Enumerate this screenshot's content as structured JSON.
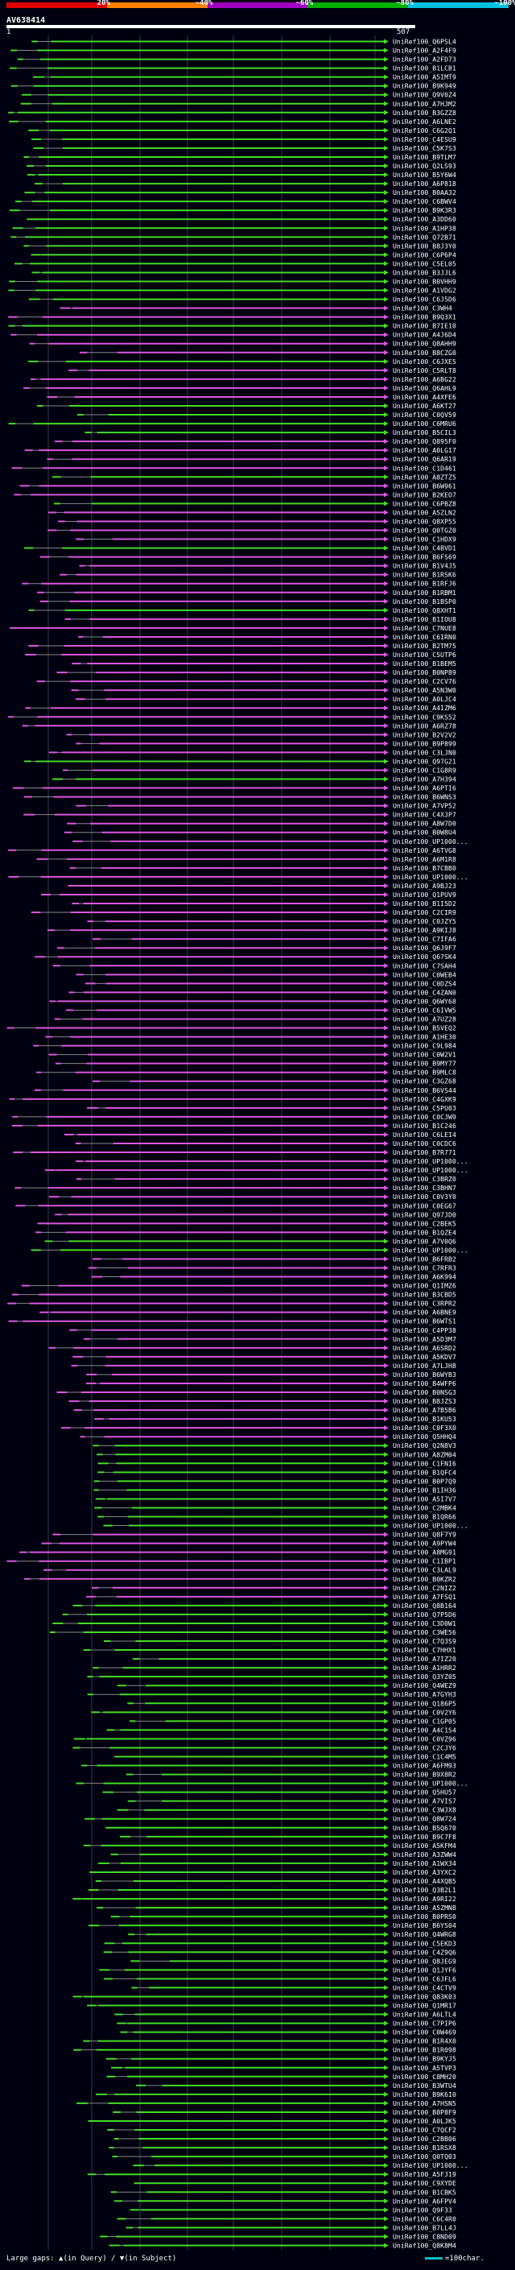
{
  "scale": {
    "labels": [
      "20%",
      "~40%",
      "~60%",
      "~80%",
      "~100%"
    ],
    "colors": [
      "#e00000",
      "#ff8000",
      "#a000c0",
      "#00b000",
      "#00c0e0"
    ]
  },
  "query": {
    "name": "AV638414",
    "start": "1",
    "end": "507"
  },
  "colors": {
    "high_identity": "#44dd22",
    "low_identity": "#dd55dd",
    "gap": "#888888",
    "grid": "#3a3a4a"
  },
  "hits": [
    {
      "label": "UniRef100_Q6PSL4",
      "c": "g"
    },
    {
      "label": "UniRef100_A2F4F9",
      "c": "g"
    },
    {
      "label": "UniRef100_A2FD73",
      "c": "g"
    },
    {
      "label": "UniRef100_B1LCB1",
      "c": "g"
    },
    {
      "label": "UniRef100_A5IMT9",
      "c": "g"
    },
    {
      "label": "UniRef100_B9K949",
      "c": "g"
    },
    {
      "label": "UniRef100_Q9V0Z4",
      "c": "g"
    },
    {
      "label": "UniRef100_A7HJM2",
      "c": "g"
    },
    {
      "label": "UniRef100_B3GZZ8",
      "c": "g"
    },
    {
      "label": "UniRef100_A6LNE2",
      "c": "g"
    },
    {
      "label": "UniRef100_C6G2Q1",
      "c": "g"
    },
    {
      "label": "UniRef100_C4ESU9",
      "c": "g"
    },
    {
      "label": "UniRef100_C5K7S3",
      "c": "g"
    },
    {
      "label": "UniRef100_B9TLM7",
      "c": "g"
    },
    {
      "label": "UniRef100_Q2LS93",
      "c": "g"
    },
    {
      "label": "UniRef100_B5Y6W4",
      "c": "g"
    },
    {
      "label": "UniRef100_A6P818",
      "c": "g"
    },
    {
      "label": "UniRef100_B0AA32",
      "c": "g"
    },
    {
      "label": "UniRef100_C6BWV4",
      "c": "g"
    },
    {
      "label": "UniRef100_B9K3R3",
      "c": "g"
    },
    {
      "label": "UniRef100_A3DD60",
      "c": "g"
    },
    {
      "label": "UniRef100_A1HP38",
      "c": "g"
    },
    {
      "label": "UniRef100_Q72B71",
      "c": "g"
    },
    {
      "label": "UniRef100_B8J3Y0",
      "c": "g"
    },
    {
      "label": "UniRef100_C6P6P4",
      "c": "g"
    },
    {
      "label": "UniRef100_C5EL05",
      "c": "g"
    },
    {
      "label": "UniRef100_B3JJL6",
      "c": "g"
    },
    {
      "label": "UniRef100_B0VHH9",
      "c": "g"
    },
    {
      "label": "UniRef100_A1VDG2",
      "c": "g"
    },
    {
      "label": "UniRef100_C6J5D6",
      "c": "g"
    },
    {
      "label": "UniRef100_C3WH4",
      "c": "p"
    },
    {
      "label": "UniRef100_B9Q3X1",
      "c": "p"
    },
    {
      "label": "UniRef100_B7IE10",
      "c": "g"
    },
    {
      "label": "UniRef100_A4J6D4",
      "c": "p"
    },
    {
      "label": "UniRef100_Q8AHH9",
      "c": "p"
    },
    {
      "label": "UniRef100_B8CZG0",
      "c": "p"
    },
    {
      "label": "UniRef100_C6JXE5",
      "c": "g"
    },
    {
      "label": "UniRef100_C5RLT8",
      "c": "p"
    },
    {
      "label": "UniRef100_A6BG22",
      "c": "p"
    },
    {
      "label": "UniRef100_Q6AHL9",
      "c": "p"
    },
    {
      "label": "UniRef100_A4XFE6",
      "c": "p"
    },
    {
      "label": "UniRef100_A6KT27",
      "c": "g"
    },
    {
      "label": "UniRef100_C0QV59",
      "c": "g"
    },
    {
      "label": "UniRef100_C6MRU6",
      "c": "g"
    },
    {
      "label": "UniRef100_B5CIL3",
      "c": "g"
    },
    {
      "label": "UniRef100_Q895F0",
      "c": "p"
    },
    {
      "label": "UniRef100_A0LG17",
      "c": "p"
    },
    {
      "label": "UniRef100_Q6AR19",
      "c": "p"
    },
    {
      "label": "UniRef100_C1D461",
      "c": "p"
    },
    {
      "label": "UniRef100_A8ZTZ5",
      "c": "g"
    },
    {
      "label": "UniRef100_B6W961",
      "c": "p"
    },
    {
      "label": "UniRef100_B2KEO7",
      "c": "p"
    },
    {
      "label": "UniRef100_C6PBZ8",
      "c": "g"
    },
    {
      "label": "UniRef100_A5ZLN2",
      "c": "p"
    },
    {
      "label": "UniRef100_Q8XP55",
      "c": "p"
    },
    {
      "label": "UniRef100_Q0TGZ0",
      "c": "p"
    },
    {
      "label": "UniRef100_C1HDX9",
      "c": "p"
    },
    {
      "label": "UniRef100_C4BVD1",
      "c": "g"
    },
    {
      "label": "UniRef100_B6FS69",
      "c": "p"
    },
    {
      "label": "UniRef100_B1V4J5",
      "c": "p"
    },
    {
      "label": "UniRef100_B1RSK6",
      "c": "p"
    },
    {
      "label": "UniRef100_B1RFJ6",
      "c": "p"
    },
    {
      "label": "UniRef100_B1RBM1",
      "c": "p"
    },
    {
      "label": "UniRef100_B1BSP0",
      "c": "p"
    },
    {
      "label": "UniRef100_Q8XHT1",
      "c": "g"
    },
    {
      "label": "UniRef100_B1IOU8",
      "c": "p"
    },
    {
      "label": "UniRef100_C7NUE8",
      "c": "p"
    },
    {
      "label": "UniRef100_C6IRN0",
      "c": "p"
    },
    {
      "label": "UniRef100_B2TM75",
      "c": "p"
    },
    {
      "label": "UniRef100_C5UTP6",
      "c": "p"
    },
    {
      "label": "UniRef100_B1BEM5",
      "c": "p"
    },
    {
      "label": "UniRef100_B0NP89",
      "c": "p"
    },
    {
      "label": "UniRef100_C2CV76",
      "c": "p"
    },
    {
      "label": "UniRef100_A5N3W0",
      "c": "p"
    },
    {
      "label": "UniRef100_A0LJC4",
      "c": "p"
    },
    {
      "label": "UniRef100_A4IZM6",
      "c": "p"
    },
    {
      "label": "UniRef100_C9KS52",
      "c": "p"
    },
    {
      "label": "UniRef100_A6RZ78",
      "c": "p"
    },
    {
      "label": "UniRef100_B2V2V2",
      "c": "p"
    },
    {
      "label": "UniRef100_B9P899",
      "c": "p"
    },
    {
      "label": "UniRef100_C3LJN0",
      "c": "p"
    },
    {
      "label": "UniRef100_Q97G21",
      "c": "g"
    },
    {
      "label": "UniRef100_C1G8R9",
      "c": "p"
    },
    {
      "label": "UniRef100_A7H394",
      "c": "g"
    },
    {
      "label": "UniRef100_A6PTI6",
      "c": "p"
    },
    {
      "label": "UniRef100_B6WNS3",
      "c": "p"
    },
    {
      "label": "UniRef100_A7VP52",
      "c": "p"
    },
    {
      "label": "UniRef100_C4XJP7",
      "c": "p"
    },
    {
      "label": "UniRef100_A8W7D0",
      "c": "p"
    },
    {
      "label": "UniRef100_B0W8U4",
      "c": "p"
    },
    {
      "label": "UniRef100_UP1000...",
      "c": "p"
    },
    {
      "label": "UniRef100_A6TVG8",
      "c": "p"
    },
    {
      "label": "UniRef100_A6M1R8",
      "c": "p"
    },
    {
      "label": "UniRef100_B7CBB0",
      "c": "p"
    },
    {
      "label": "UniRef100_UP1000...",
      "c": "p"
    },
    {
      "label": "UniRef100_A9BJ23",
      "c": "p"
    },
    {
      "label": "UniRef100_Q1PUV9",
      "c": "p"
    },
    {
      "label": "UniRef100_B1I5D2",
      "c": "p"
    },
    {
      "label": "UniRef100_C2CIR9",
      "c": "p"
    },
    {
      "label": "UniRef100_C0JZY5",
      "c": "p"
    },
    {
      "label": "UniRef100_A9KIJ8",
      "c": "p"
    },
    {
      "label": "UniRef100_C7IFA6",
      "c": "p"
    },
    {
      "label": "UniRef100_Q6J9F7",
      "c": "p"
    },
    {
      "label": "UniRef100_Q67SK4",
      "c": "p"
    },
    {
      "label": "UniRef100_C7SAH4",
      "c": "p"
    },
    {
      "label": "UniRef100_C0WEB4",
      "c": "p"
    },
    {
      "label": "UniRef100_C0DZS4",
      "c": "p"
    },
    {
      "label": "UniRef100_C4ZAN0",
      "c": "p"
    },
    {
      "label": "UniRef100_Q6WY68",
      "c": "p"
    },
    {
      "label": "UniRef100_C6IVW5",
      "c": "p"
    },
    {
      "label": "UniRef100_A7UZ28",
      "c": "p"
    },
    {
      "label": "UniRef100_B5VEQ2",
      "c": "p"
    },
    {
      "label": "UniRef100_A1HE30",
      "c": "p"
    },
    {
      "label": "UniRef100_C9L984",
      "c": "p"
    },
    {
      "label": "UniRef100_C0W2V1",
      "c": "p"
    },
    {
      "label": "UniRef100_B9MY77",
      "c": "p"
    },
    {
      "label": "UniRef100_B9MLC8",
      "c": "p"
    },
    {
      "label": "UniRef100_C3GZ68",
      "c": "p"
    },
    {
      "label": "UniRef100_B6VS44",
      "c": "p"
    },
    {
      "label": "UniRef100_C4GXK9",
      "c": "p"
    },
    {
      "label": "UniRef100_C5PU03",
      "c": "p"
    },
    {
      "label": "UniRef100_C0CJW9",
      "c": "p"
    },
    {
      "label": "UniRef100_B1C246",
      "c": "p"
    },
    {
      "label": "UniRef100_C6LEI4",
      "c": "p"
    },
    {
      "label": "UniRef100_C0CDC6",
      "c": "p"
    },
    {
      "label": "UniRef100_B7R771",
      "c": "p"
    },
    {
      "label": "UniRef100_UP1000...",
      "c": "p"
    },
    {
      "label": "UniRef100_UP1000...",
      "c": "p"
    },
    {
      "label": "UniRef100_C3BRZ0",
      "c": "p"
    },
    {
      "label": "UniRef100_C3BHN7",
      "c": "p"
    },
    {
      "label": "UniRef100_C0V3Y0",
      "c": "p"
    },
    {
      "label": "UniRef100_C0EG67",
      "c": "p"
    },
    {
      "label": "UniRef100_Q97JD0",
      "c": "p"
    },
    {
      "label": "UniRef100_C2BEK5",
      "c": "p"
    },
    {
      "label": "UniRef100_B1QZE4",
      "c": "p"
    },
    {
      "label": "UniRef100_A7V0Q6",
      "c": "g"
    },
    {
      "label": "UniRef100_UP1000...",
      "c": "g"
    },
    {
      "label": "UniRef100_B6FRB2",
      "c": "p"
    },
    {
      "label": "UniRef100_C7RFR3",
      "c": "p"
    },
    {
      "label": "UniRef100_A6K994",
      "c": "p"
    },
    {
      "label": "UniRef100_Q1IMZ6",
      "c": "p"
    },
    {
      "label": "UniRef100_B3CBD5",
      "c": "p"
    },
    {
      "label": "UniRef100_C3RPR2",
      "c": "p"
    },
    {
      "label": "UniRef100_A6BNE9",
      "c": "p"
    },
    {
      "label": "UniRef100_B6WTS1",
      "c": "p"
    },
    {
      "label": "UniRef100_C4PP38",
      "c": "p"
    },
    {
      "label": "UniRef100_A5D3M7",
      "c": "p"
    },
    {
      "label": "UniRef100_A6SRD2",
      "c": "p"
    },
    {
      "label": "UniRef100_A5KDV7",
      "c": "p"
    },
    {
      "label": "UniRef100_A7LJH8",
      "c": "p"
    },
    {
      "label": "UniRef100_B6WYB3",
      "c": "p"
    },
    {
      "label": "UniRef100_B4WFP6",
      "c": "p"
    },
    {
      "label": "UniRef100_B0NSG3",
      "c": "p"
    },
    {
      "label": "UniRef100_B8JZS3",
      "c": "p"
    },
    {
      "label": "UniRef100_A7B5B6",
      "c": "p"
    },
    {
      "label": "UniRef100_B1KU53",
      "c": "p"
    },
    {
      "label": "UniRef100_C0F3X0",
      "c": "p"
    },
    {
      "label": "UniRef100_Q5HHQ4",
      "c": "p"
    },
    {
      "label": "UniRef100_Q2N8V3",
      "c": "g"
    },
    {
      "label": "UniRef100_A8ZM04",
      "c": "g"
    },
    {
      "label": "UniRef100_C1FNI6",
      "c": "g"
    },
    {
      "label": "UniRef100_B1QFC4",
      "c": "g"
    },
    {
      "label": "UniRef100_B0P7Q9",
      "c": "g"
    },
    {
      "label": "UniRef100_B1IH36",
      "c": "g"
    },
    {
      "label": "UniRef100_A5I7V7",
      "c": "g"
    },
    {
      "label": "UniRef100_C2MBK4",
      "c": "g"
    },
    {
      "label": "UniRef100_B1QR66",
      "c": "g"
    },
    {
      "label": "UniRef100_UP1000...",
      "c": "g"
    },
    {
      "label": "UniRef100_Q8F7Y9",
      "c": "p"
    },
    {
      "label": "UniRef100_A9PYW4",
      "c": "p"
    },
    {
      "label": "UniRef100_A8MG91",
      "c": "p"
    },
    {
      "label": "UniRef100_C1IBP1",
      "c": "p"
    },
    {
      "label": "UniRef100_C3LAL9",
      "c": "p"
    },
    {
      "label": "UniRef100_B0KZR2",
      "c": "p"
    },
    {
      "label": "UniRef100_C2NIZ2",
      "c": "p"
    },
    {
      "label": "UniRef100_A7FSQ1",
      "c": "p"
    },
    {
      "label": "UniRef100_Q8B164",
      "c": "g"
    },
    {
      "label": "UniRef100_Q7P5D6",
      "c": "g"
    },
    {
      "label": "UniRef100_C3D0W1",
      "c": "g"
    },
    {
      "label": "UniRef100_C3WE56",
      "c": "g"
    },
    {
      "label": "UniRef100_C7Q3S9",
      "c": "g"
    },
    {
      "label": "UniRef100_C7HHX1",
      "c": "g"
    },
    {
      "label": "UniRef100_A7IZ20",
      "c": "g"
    },
    {
      "label": "UniRef100_A1HRR2",
      "c": "g"
    },
    {
      "label": "UniRef100_Q3YZ05",
      "c": "g"
    },
    {
      "label": "UniRef100_Q4WEZ9",
      "c": "g"
    },
    {
      "label": "UniRef100_A7GYH3",
      "c": "g"
    },
    {
      "label": "UniRef100_Q186P5",
      "c": "g"
    },
    {
      "label": "UniRef100_C0V2Y6",
      "c": "g"
    },
    {
      "label": "UniRef100_C1GP05",
      "c": "g"
    },
    {
      "label": "UniRef100_A4C1S4",
      "c": "g"
    },
    {
      "label": "UniRef100_C0VZ96",
      "c": "g"
    },
    {
      "label": "UniRef100_C2CJY6",
      "c": "g"
    },
    {
      "label": "UniRef100_C1C4M5",
      "c": "g"
    },
    {
      "label": "UniRef100_A6FM93",
      "c": "g"
    },
    {
      "label": "UniRef100_B9X8R2",
      "c": "g"
    },
    {
      "label": "UniRef100_UP1000...",
      "c": "g"
    },
    {
      "label": "UniRef100_Q5HU57",
      "c": "g"
    },
    {
      "label": "UniRef100_A7VIS7",
      "c": "g"
    },
    {
      "label": "UniRef100_C3WJX8",
      "c": "g"
    },
    {
      "label": "UniRef100_Q8W724",
      "c": "g"
    },
    {
      "label": "UniRef100_B5Q670",
      "c": "g"
    },
    {
      "label": "UniRef100_B9C7F8",
      "c": "g"
    },
    {
      "label": "UniRef100_A5KFM4",
      "c": "g"
    },
    {
      "label": "UniRef100_A3ZWW4",
      "c": "g"
    },
    {
      "label": "UniRef100_A1WX34",
      "c": "g"
    },
    {
      "label": "UniRef100_A3YXC2",
      "c": "g"
    },
    {
      "label": "UniRef100_A4XQB5",
      "c": "g"
    },
    {
      "label": "UniRef100_Q3B2L1",
      "c": "g"
    },
    {
      "label": "UniRef100_A9RI22",
      "c": "g"
    },
    {
      "label": "UniRef100_A5ZMN8",
      "c": "g"
    },
    {
      "label": "UniRef100_B0PRS0",
      "c": "g"
    },
    {
      "label": "UniRef100_B6YS04",
      "c": "g"
    },
    {
      "label": "UniRef100_Q4WRG8",
      "c": "g"
    },
    {
      "label": "UniRef100_C5EKD3",
      "c": "g"
    },
    {
      "label": "UniRef100_C4Z9Q6",
      "c": "g"
    },
    {
      "label": "UniRef100_Q8JEG9",
      "c": "g"
    },
    {
      "label": "UniRef100_Q1JYF6",
      "c": "g"
    },
    {
      "label": "UniRef100_C6JFL6",
      "c": "g"
    },
    {
      "label": "UniRef100_C4CTV9",
      "c": "g"
    },
    {
      "label": "UniRef100_Q83K03",
      "c": "g"
    },
    {
      "label": "UniRef100_Q1MR17",
      "c": "g"
    },
    {
      "label": "UniRef100_A6LTL4",
      "c": "g"
    },
    {
      "label": "UniRef100_C7PIP6",
      "c": "g"
    },
    {
      "label": "UniRef100_C0W469",
      "c": "g"
    },
    {
      "label": "UniRef100_B1R4X0",
      "c": "g"
    },
    {
      "label": "UniRef100_B1R098",
      "c": "g"
    },
    {
      "label": "UniRef100_B9KYJ5",
      "c": "g"
    },
    {
      "label": "UniRef100_A5TVP3",
      "c": "g"
    },
    {
      "label": "UniRef100_C8MH20",
      "c": "g"
    },
    {
      "label": "UniRef100_B3WTU4",
      "c": "g"
    },
    {
      "label": "UniRef100_B9K6I0",
      "c": "g"
    },
    {
      "label": "UniRef100_A7HSN5",
      "c": "g"
    },
    {
      "label": "UniRef100_B8P8F9",
      "c": "g"
    },
    {
      "label": "UniRef100_A0LJK5",
      "c": "g"
    },
    {
      "label": "UniRef100_C7QCF2",
      "c": "g"
    },
    {
      "label": "UniRef100_C2BB06",
      "c": "g"
    },
    {
      "label": "UniRef100_B1RSX8",
      "c": "g"
    },
    {
      "label": "UniRef100_Q0TQ03",
      "c": "g"
    },
    {
      "label": "UniRef100_UP1000...",
      "c": "g"
    },
    {
      "label": "UniRef100_A5FJ19",
      "c": "g"
    },
    {
      "label": "UniRef100_C9XYDE",
      "c": "g"
    },
    {
      "label": "UniRef100_B1CBK5",
      "c": "g"
    },
    {
      "label": "UniRef100_A6FPV4",
      "c": "g"
    },
    {
      "label": "UniRef100_Q9F33",
      "c": "g"
    },
    {
      "label": "UniRef100_C6C4R0",
      "c": "g"
    },
    {
      "label": "UniRef100_B7LL4J",
      "c": "g"
    },
    {
      "label": "UniRef100_C8ND09",
      "c": "g"
    },
    {
      "label": "UniRef100_Q8K8M4",
      "c": "g"
    }
  ],
  "legend": {
    "large_gaps": "Large gaps: ",
    "in_query": "(in Query)",
    "sep": " / ",
    "in_subject": "(in Subject)",
    "scale_text": "=100char."
  }
}
